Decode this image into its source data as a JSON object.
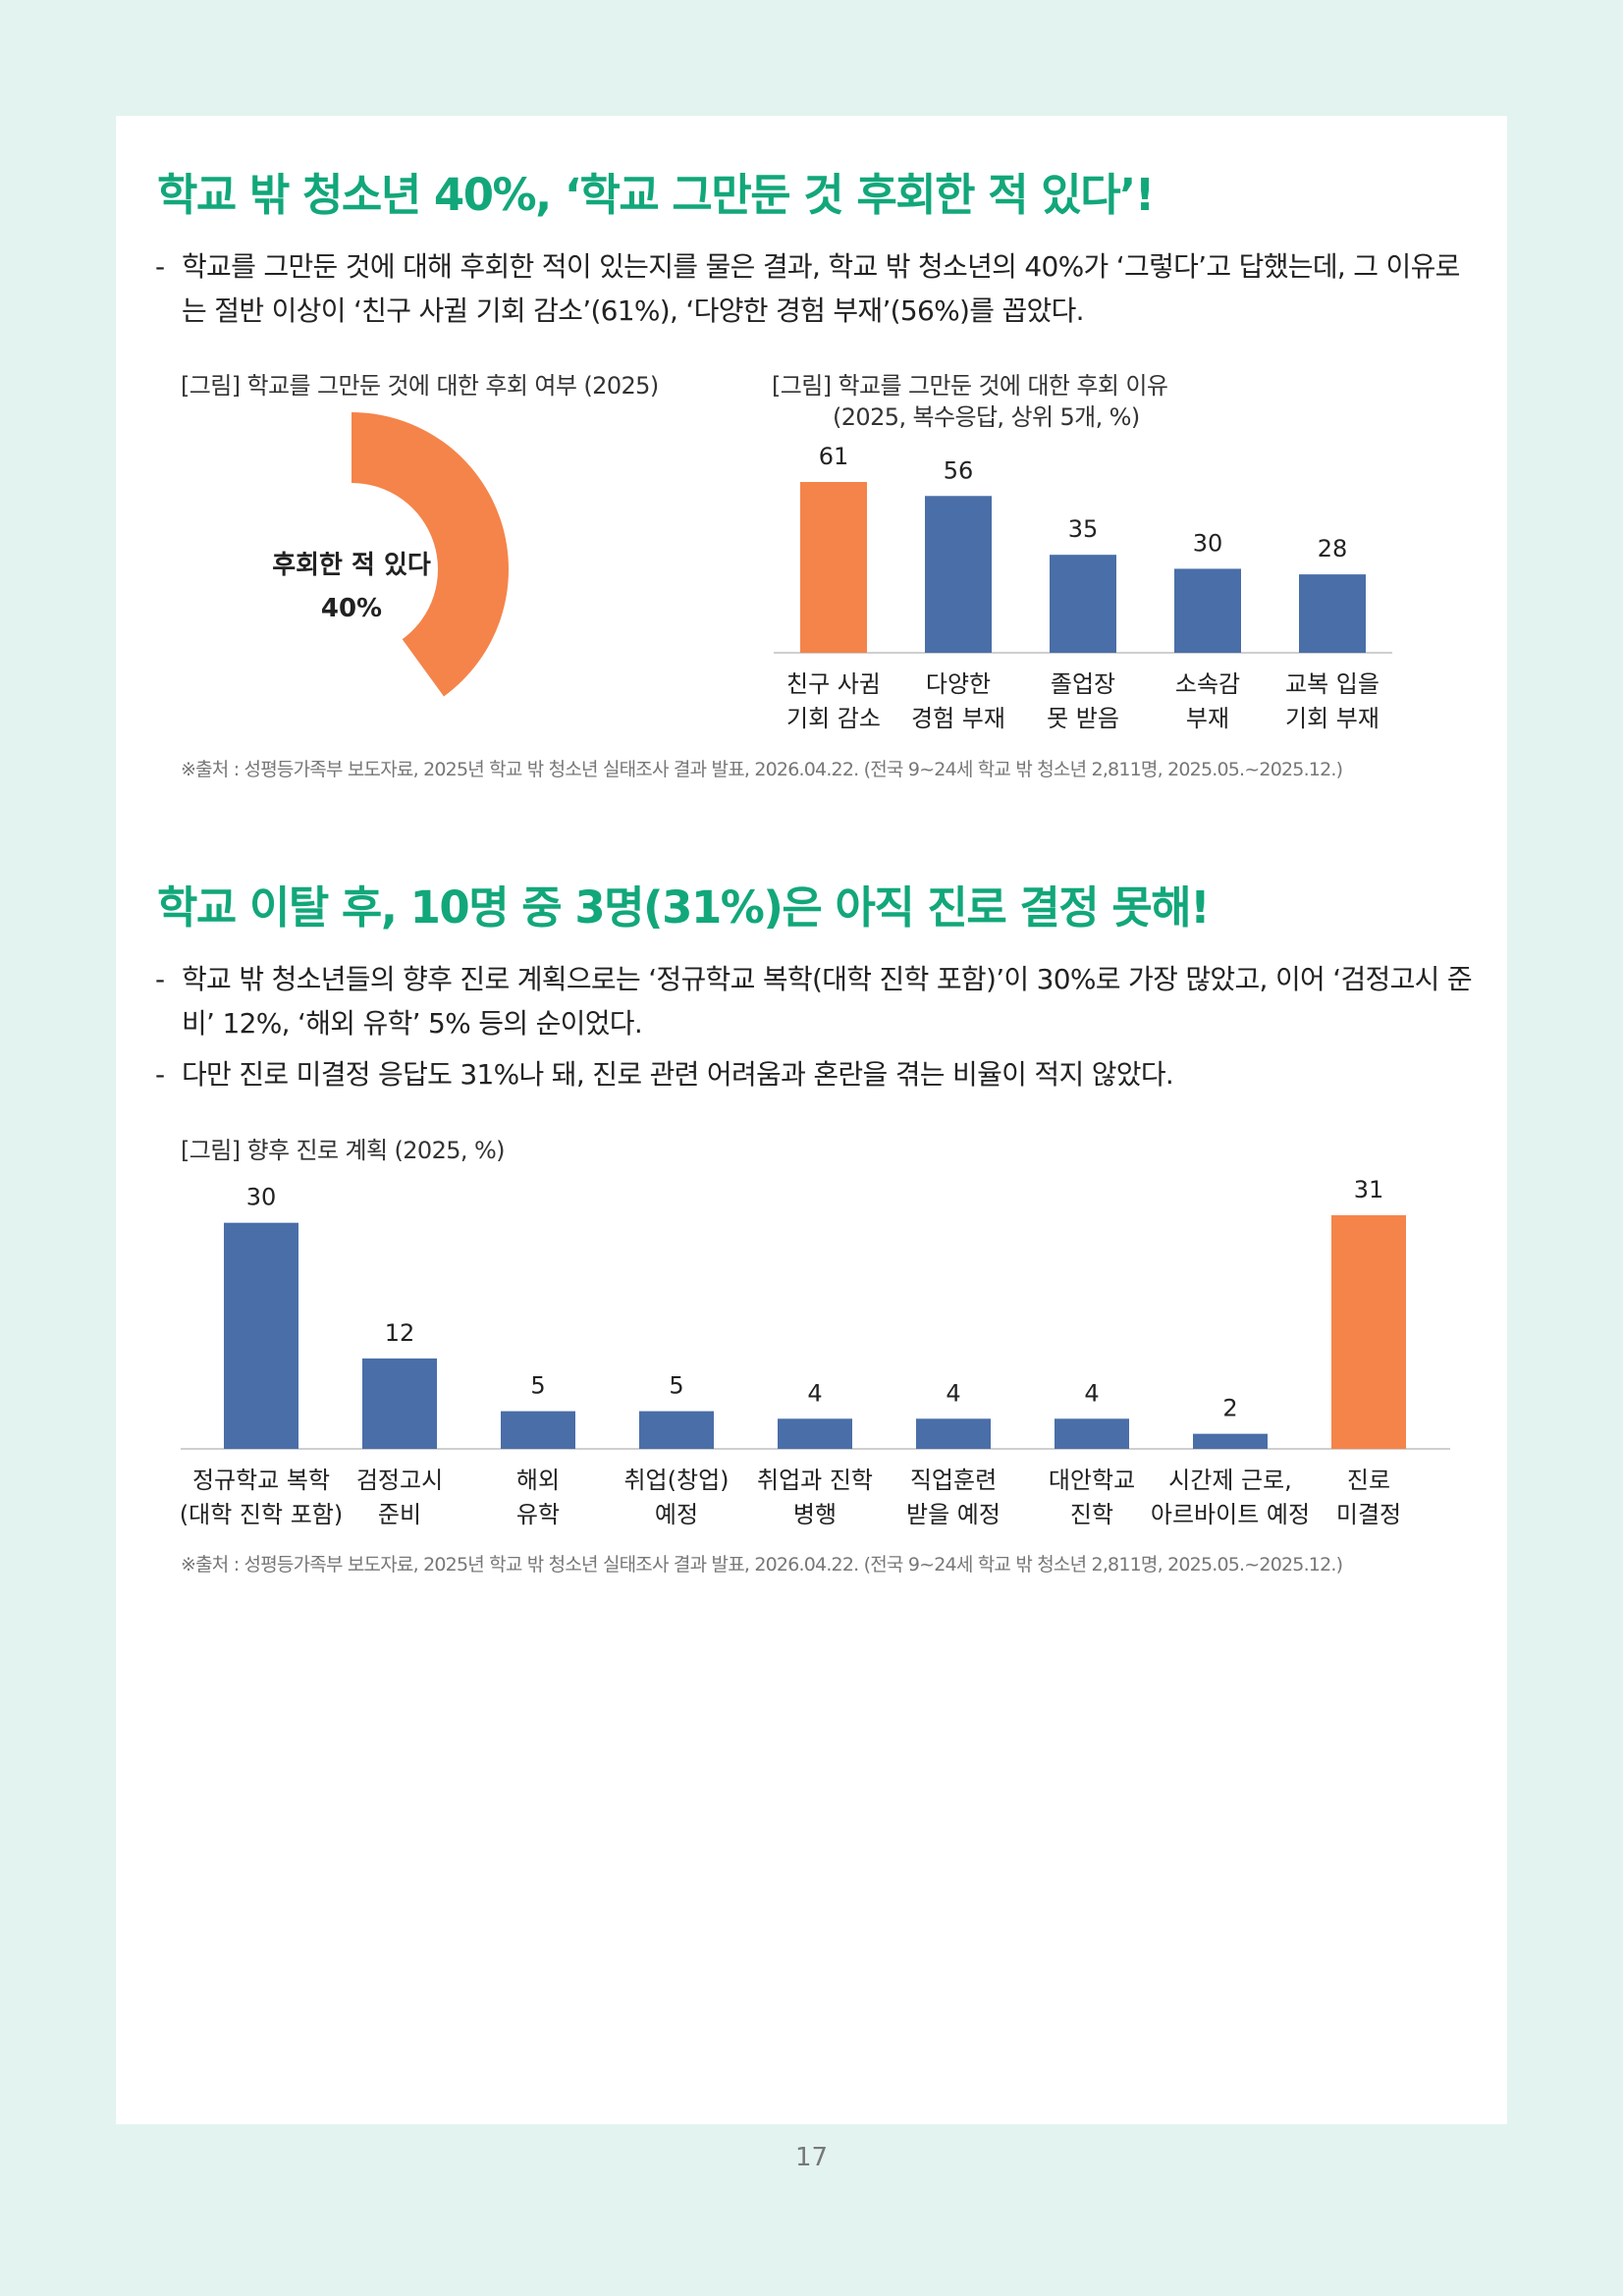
{
  "section1": {
    "heading": "학교 밖 청소년 40%, ‘학교 그만둔 것 후회한 적 있다’!",
    "bullets": [
      "학교를 그만둔 것에 대해 후회한 적이 있는지를 물은 결과, 학교 밖 청소년의 40%가 ‘그렇다’고 답했는데, 그 이유로는 절반 이상이 ‘친구 사귈 기회 감소’(61%), ‘다양한 경험 부재’(56%)를 꼽았다."
    ],
    "source": "※출처 : 성평등가족부 보도자료, 2025년 학교 밖 청소년 실태조사 결과 발표, 2026.04.22. (전국 9~24세 학교 밖 청소년 2,811명, 2025.05.~2025.12.)"
  },
  "section2": {
    "heading": "학교 이탈 후, 10명 중 3명(31%)은 아직 진로 결정 못해!",
    "bullets": [
      "학교 밖 청소년들의 향후 진로 계획으로는 ‘정규학교 복학(대학 진학 포함)’이 30%로 가장 많았고, 이어 ‘검정고시 준비’ 12%, ‘해외 유학’ 5% 등의 순이었다.",
      "다만 진로 미결정 응답도 31%나 돼, 진로 관련 어려움과 혼란을 겪는 비율이 적지 않았다."
    ],
    "source": "※출처 : 성평등가족부 보도자료, 2025년 학교 밖 청소년 실태조사 결과 발표, 2026.04.22. (전국 9~24세 학교 밖 청소년 2,811명, 2025.05.~2025.12.)"
  },
  "bullet_marker": "-",
  "page_number": "17",
  "colors": {
    "accent_green": "#12a77a",
    "orange": "#f5844a",
    "blue": "#4a6ea8"
  },
  "chart_data": [
    {
      "type": "pie",
      "title": "[그림] 학교를 그만둔 것에 대한 후회 여부 (2025)",
      "slices": [
        {
          "name": "후회한 적 있다",
          "value": 40,
          "value_label": "40%",
          "color": "#f5844a"
        }
      ]
    },
    {
      "type": "bar",
      "title": "[그림] 학교를 그만둔 것에 대한 후회 이유",
      "subtitle": "(2025, 복수응답, 상위 5개, %)",
      "categories": [
        [
          "친구 사귐",
          "기회 감소"
        ],
        [
          "다양한",
          "경험 부재"
        ],
        [
          "졸업장",
          "못 받음"
        ],
        [
          "소속감",
          "부재"
        ],
        [
          "교복 입을",
          "기회 부재"
        ]
      ],
      "values": [
        61,
        56,
        35,
        30,
        28
      ],
      "colors": [
        "#f5844a",
        "#4a6ea8",
        "#4a6ea8",
        "#4a6ea8",
        "#4a6ea8"
      ],
      "ylim": [
        0,
        61
      ]
    },
    {
      "type": "bar",
      "title": "[그림] 향후 진로 계획 (2025, %)",
      "categories": [
        [
          "정규학교 복학",
          "(대학 진학 포함)"
        ],
        [
          "검정고시",
          "준비"
        ],
        [
          "해외",
          "유학"
        ],
        [
          "취업(창업)",
          "예정"
        ],
        [
          "취업과 진학",
          "병행"
        ],
        [
          "직업훈련",
          "받을 예정"
        ],
        [
          "대안학교",
          "진학"
        ],
        [
          "시간제 근로,",
          "아르바이트 예정"
        ],
        [
          "진로",
          "미결정"
        ]
      ],
      "values": [
        30,
        12,
        5,
        5,
        4,
        4,
        4,
        2,
        31
      ],
      "colors": [
        "#4a6ea8",
        "#4a6ea8",
        "#4a6ea8",
        "#4a6ea8",
        "#4a6ea8",
        "#4a6ea8",
        "#4a6ea8",
        "#4a6ea8",
        "#f5844a"
      ],
      "ylim": [
        0,
        31
      ]
    }
  ]
}
